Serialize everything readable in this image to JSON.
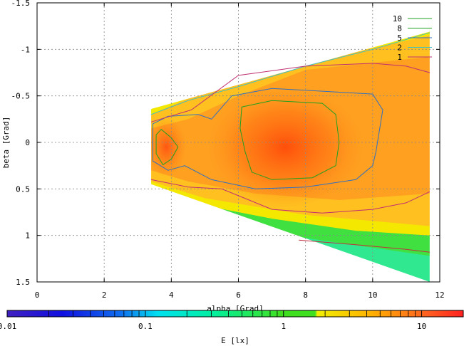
{
  "chart_data": {
    "type": "heatmap",
    "title": "",
    "xlabel": "alpha [Grad]",
    "ylabel": "beta [Grad]",
    "xlim": [
      0,
      12
    ],
    "ylim": [
      1.5,
      -1.5
    ],
    "x_ticks": [
      "0",
      "2",
      "4",
      "6",
      "8",
      "10",
      "12"
    ],
    "y_ticks": [
      "-1.5",
      "-1",
      "-0.5",
      "0",
      "0.5",
      "1",
      "1.5"
    ],
    "x_tick_values": [
      0,
      2,
      4,
      6,
      8,
      10,
      12
    ],
    "y_tick_values": [
      -1.5,
      -1,
      -0.5,
      0,
      0.5,
      1,
      1.5
    ],
    "grid": true,
    "legend_position": "top-right",
    "contours": [
      {
        "name": "10",
        "color": "#20a020"
      },
      {
        "name": "8",
        "color": "#20a020"
      },
      {
        "name": "5",
        "color": "#3070c0"
      },
      {
        "name": "2",
        "color": "#40c0c0"
      },
      {
        "name": "1",
        "color": "#c03070"
      }
    ],
    "colorbar": {
      "label": "E [lx]",
      "scale": "log",
      "range": [
        0.01,
        20
      ],
      "ticks": [
        "0.01",
        "0.1",
        "1",
        "10"
      ],
      "tick_values": [
        0.01,
        0.1,
        1,
        10
      ]
    },
    "data_region": {
      "alpha_range": [
        3.4,
        11.7
      ],
      "beta_upper_edge": [
        [
          3.4,
          -0.36
        ],
        [
          11.7,
          -1.22
        ]
      ],
      "beta_lower_edge": [
        [
          3.4,
          0.45
        ],
        [
          11.7,
          1.5
        ]
      ],
      "peak_regions": [
        {
          "alpha": 3.8,
          "beta": 0.05,
          "E": 10
        },
        {
          "alpha": 7.4,
          "beta": 0.0,
          "E": 12
        }
      ]
    }
  }
}
